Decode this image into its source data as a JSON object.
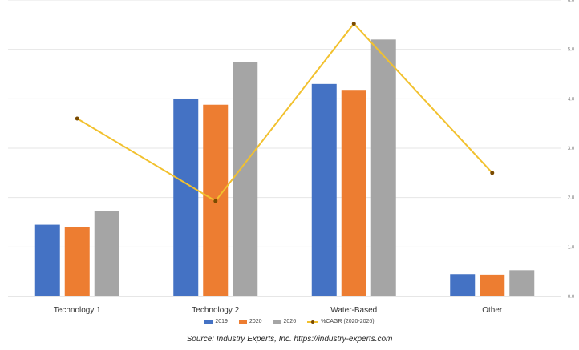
{
  "chart_data": {
    "type": "bar",
    "categories": [
      "Technology 1",
      "Technology 2",
      "Water-Based",
      "Other"
    ],
    "series": [
      {
        "name": "2019",
        "values": [
          14.5,
          40,
          43,
          4.5
        ],
        "color": "#4472C4"
      },
      {
        "name": "2020",
        "values": [
          14,
          38.8,
          41.8,
          4.4
        ],
        "color": "#ED7D31"
      },
      {
        "name": "2026",
        "values": [
          17.2,
          47.5,
          52,
          5.3
        ],
        "color": "#A5A5A5"
      }
    ],
    "line_series": {
      "name": "%CAGR (2020-2026)",
      "values": [
        3.6,
        1.93,
        5.52,
        2.5
      ],
      "color": "#F2C12E"
    },
    "ylim": [
      0,
      60
    ],
    "y2lim": [
      0.0,
      6.0
    ],
    "grid": true,
    "legend_position": "bottom",
    "xlabel": "",
    "ylabel": ""
  },
  "source": "Source: Industry Experts, Inc. https://industry-experts.com"
}
